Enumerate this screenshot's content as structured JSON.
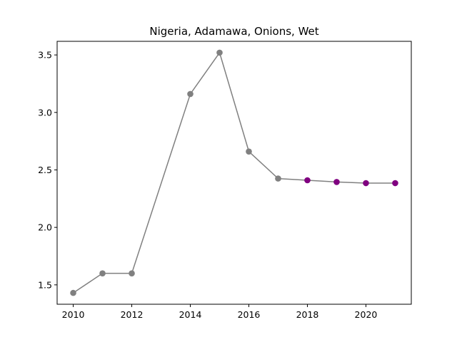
{
  "chart_data": {
    "type": "line",
    "title": "Nigeria, Adamawa, Onions, Wet",
    "xlabel": "",
    "ylabel": "",
    "xlim": [
      2009.45,
      2021.55
    ],
    "ylim": [
      1.3315,
      3.6185
    ],
    "x_ticks": [
      2010,
      2012,
      2014,
      2016,
      2018,
      2020
    ],
    "y_ticks": [
      1.5,
      2.0,
      2.5,
      3.0,
      3.5
    ],
    "x_tick_labels": [
      "2010",
      "2012",
      "2014",
      "2016",
      "2018",
      "2020"
    ],
    "y_tick_labels": [
      "1.5",
      "2.0",
      "2.5",
      "3.0",
      "3.5"
    ],
    "grid": false,
    "colors": {
      "line": "#808080",
      "observed": "#808080",
      "projected": "#800080"
    },
    "series": [
      {
        "x": [
          2010,
          2011,
          2012,
          2014,
          2015,
          2016,
          2017,
          2018,
          2019,
          2020,
          2021
        ],
        "values": [
          1.43,
          1.6,
          1.6,
          3.16,
          3.52,
          2.66,
          2.425,
          2.41,
          2.395,
          2.385,
          2.385
        ],
        "marker_colors": [
          "observed",
          "observed",
          "observed",
          "observed",
          "observed",
          "observed",
          "observed",
          "projected",
          "projected",
          "projected",
          "projected"
        ]
      }
    ]
  }
}
